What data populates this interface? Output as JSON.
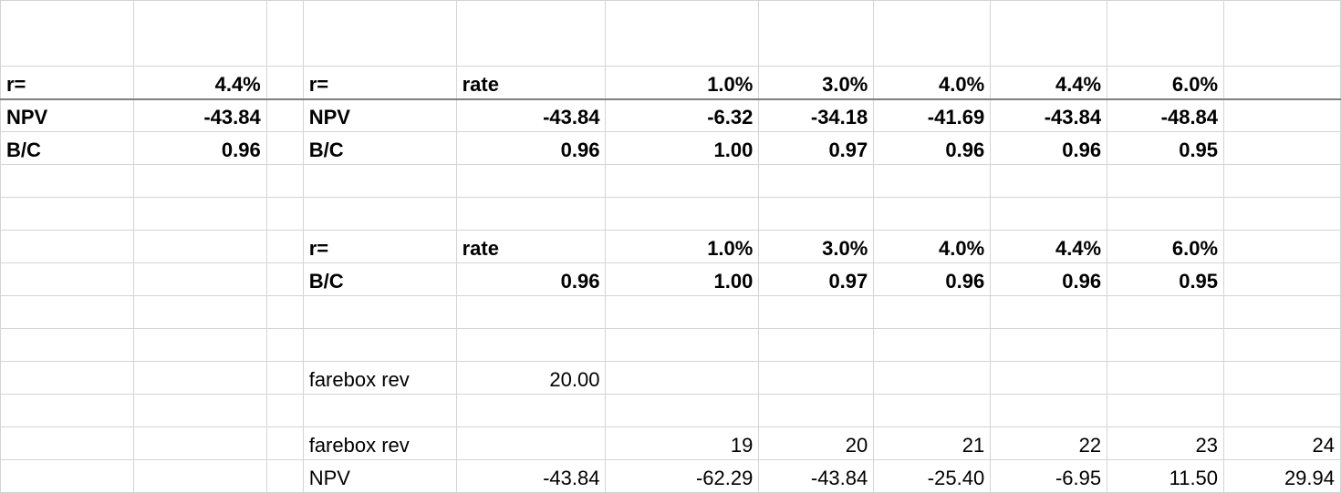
{
  "sheet": {
    "rows": [
      [
        "",
        "",
        "",
        "",
        "",
        "",
        "",
        "",
        "",
        "",
        ""
      ],
      [
        "r=",
        "4.4%",
        "",
        "r=",
        "rate",
        "1.0%",
        "3.0%",
        "4.0%",
        "4.4%",
        "6.0%",
        ""
      ],
      [
        "NPV",
        "-43.84",
        "",
        "NPV",
        "-43.84",
        "-6.32",
        "-34.18",
        "-41.69",
        "-43.84",
        "-48.84",
        ""
      ],
      [
        "B/C",
        "0.96",
        "",
        "B/C",
        "0.96",
        "1.00",
        "0.97",
        "0.96",
        "0.96",
        "0.95",
        ""
      ],
      [
        "",
        "",
        "",
        "",
        "",
        "",
        "",
        "",
        "",
        "",
        ""
      ],
      [
        "",
        "",
        "",
        "",
        "",
        "",
        "",
        "",
        "",
        "",
        ""
      ],
      [
        "",
        "",
        "",
        "r=",
        "rate",
        "1.0%",
        "3.0%",
        "4.0%",
        "4.4%",
        "6.0%",
        ""
      ],
      [
        "",
        "",
        "",
        "B/C",
        "0.96",
        "1.00",
        "0.97",
        "0.96",
        "0.96",
        "0.95",
        ""
      ],
      [
        "",
        "",
        "",
        "",
        "",
        "",
        "",
        "",
        "",
        "",
        ""
      ],
      [
        "",
        "",
        "",
        "",
        "",
        "",
        "",
        "",
        "",
        "",
        ""
      ],
      [
        "",
        "",
        "",
        "farebox rev",
        "20.00",
        "",
        "",
        "",
        "",
        "",
        ""
      ],
      [
        "",
        "",
        "",
        "",
        "",
        "",
        "",
        "",
        "",
        "",
        ""
      ],
      [
        "",
        "",
        "",
        "farebox rev",
        "",
        "19",
        "20",
        "21",
        "22",
        "23",
        "24"
      ],
      [
        "",
        "",
        "",
        "NPV",
        "-43.84",
        "-62.29",
        "-43.84",
        "-25.40",
        "-6.95",
        "11.50",
        "29.94"
      ]
    ]
  }
}
